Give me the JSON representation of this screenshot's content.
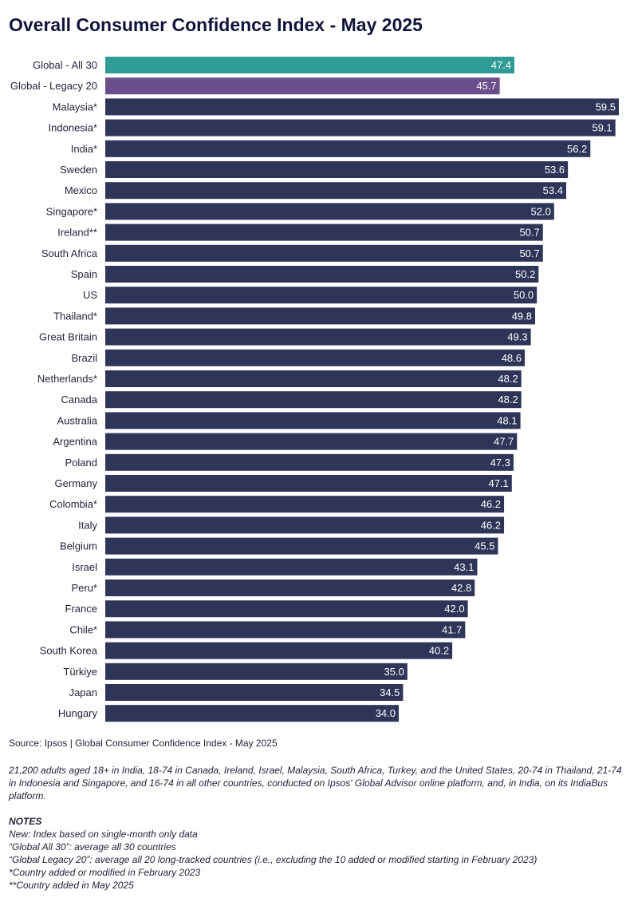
{
  "title": "Overall Consumer Confidence Index - May 2025",
  "source": "Source: Ipsos | Global Consumer Confidence Index - May 2025",
  "methodology": "21,200 adults aged 18+ in India, 18-74 in Canada, Ireland, Israel, Malaysia, South Africa, Turkey, and the United States, 20-74 in Thailand, 21-74 in Indonesia and Singapore, and 16-74 in all other countries, conducted on Ipsos' Global Advisor online platform, and, in India, on its IndiaBus platform.",
  "notes": {
    "heading": "NOTES",
    "lines": [
      "New: Index based on single-month only data",
      "“Global All 30”: average all 30 countries",
      "“Global Legacy 20”: average all 20 long-tracked countries (i.e., excluding the 10 added or modified starting in February 2023)",
      "*Country added or modified in February 2023",
      "**Country added in May 2025"
    ]
  },
  "colors": {
    "global_all": "#2f9b97",
    "global_legacy": "#6b4f8c",
    "country": "#2e3558"
  },
  "chart_data": {
    "type": "bar",
    "orientation": "horizontal",
    "title": "Overall Consumer Confidence Index - May 2025",
    "xlabel": "",
    "ylabel": "",
    "xlim": [
      0,
      59.5
    ],
    "grid": false,
    "categories": [
      "Global - All 30",
      "Global - Legacy 20",
      "Malaysia*",
      "Indonesia*",
      "India*",
      "Sweden",
      "Mexico",
      "Singapore*",
      "Ireland**",
      "South Africa",
      "Spain",
      "US",
      "Thailand*",
      "Great Britain",
      "Brazil",
      "Netherlands*",
      "Canada",
      "Australia",
      "Argentina",
      "Poland",
      "Germany",
      "Colombia*",
      "Italy",
      "Belgium",
      "Israel",
      "Peru*",
      "France",
      "Chile*",
      "South Korea",
      "Türkiye",
      "Japan",
      "Hungary"
    ],
    "values": [
      47.4,
      45.7,
      59.5,
      59.1,
      56.2,
      53.6,
      53.4,
      52.0,
      50.7,
      50.7,
      50.2,
      50.0,
      49.8,
      49.3,
      48.6,
      48.2,
      48.2,
      48.1,
      47.7,
      47.3,
      47.1,
      46.2,
      46.2,
      45.5,
      43.1,
      42.8,
      42.0,
      41.7,
      40.2,
      35.0,
      34.5,
      34.0
    ],
    "value_labels": [
      "47.4",
      "45.7",
      "59.5",
      "59.1",
      "56.2",
      "53.6",
      "53.4",
      "52.0",
      "50.7",
      "50.7",
      "50.2",
      "50.0",
      "49.8",
      "49.3",
      "48.6",
      "48.2",
      "48.2",
      "48.1",
      "47.7",
      "47.3",
      "47.1",
      "46.2",
      "46.2",
      "45.5",
      "43.1",
      "42.8",
      "42.0",
      "41.7",
      "40.2",
      "35.0",
      "34.5",
      "34.0"
    ]
  }
}
